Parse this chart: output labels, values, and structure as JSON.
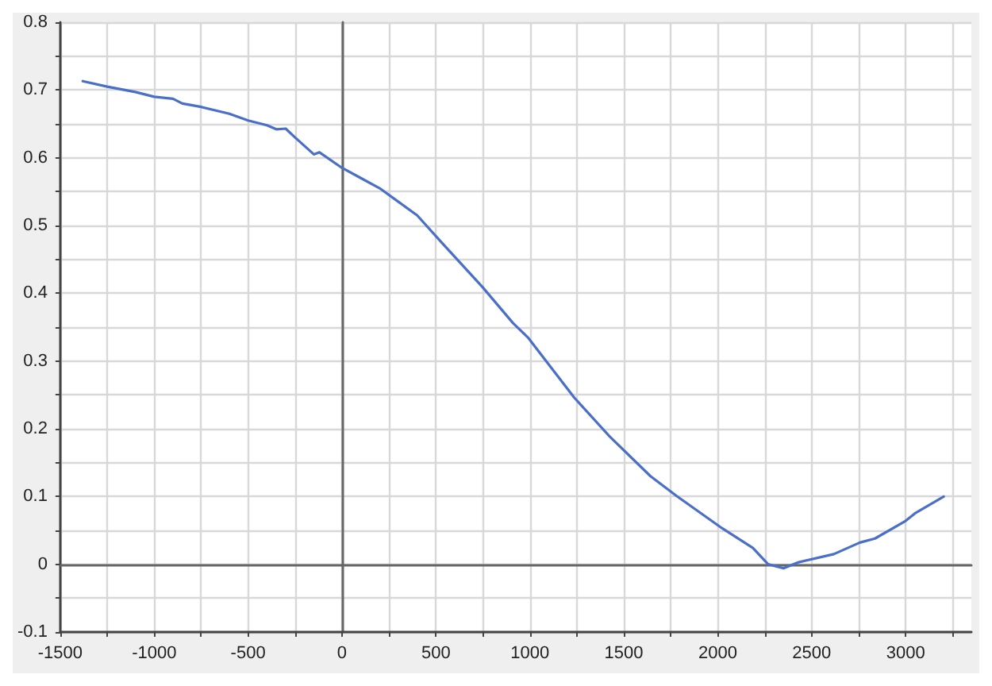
{
  "chart_data": {
    "type": "line",
    "x": [
      -1380,
      -1250,
      -1100,
      -1000,
      -900,
      -850,
      -750,
      -600,
      -500,
      -400,
      -350,
      -300,
      -250,
      -150,
      -120,
      0,
      100,
      200,
      300,
      400,
      530,
      748,
      910,
      992,
      1236,
      1423,
      1642,
      1780,
      2024,
      2187,
      2268,
      2350,
      2431,
      2618,
      2756,
      2837,
      3000,
      3049,
      3203
    ],
    "series": [
      {
        "color": "#4a6fc8",
        "values": [
          0.713,
          0.705,
          0.697,
          0.69,
          0.687,
          0.68,
          0.675,
          0.665,
          0.655,
          0.648,
          0.642,
          0.643,
          0.63,
          0.605,
          0.608,
          0.585,
          0.57,
          0.555,
          0.535,
          0.515,
          0.475,
          0.409,
          0.356,
          0.334,
          0.246,
          0.189,
          0.13,
          0.101,
          0.053,
          0.024,
          0,
          -0.006,
          0.003,
          0.015,
          0.032,
          0.038,
          0.064,
          0.075,
          0.1
        ]
      }
    ],
    "xlim": [
      -1500,
      3350
    ],
    "xticks": [
      -1500,
      {
        "value": -1250,
        "label": null
      },
      -1000,
      {
        "value": -750,
        "label": null
      },
      -500,
      {
        "value": -250,
        "label": null
      },
      0,
      {
        "value": 250,
        "label": null
      },
      500,
      {
        "value": 750,
        "label": null
      },
      1000,
      {
        "value": 1250,
        "label": null
      },
      1500,
      {
        "value": 1750,
        "label": null
      },
      2000,
      {
        "value": 2250,
        "label": null
      },
      2500,
      {
        "value": 2750,
        "label": null
      },
      3000,
      {
        "value": 3250,
        "label": null
      }
    ],
    "ylim": [
      -0.1,
      0.8
    ],
    "yticks": [
      -0.1,
      {
        "value": -0.05,
        "label": null
      },
      0,
      {
        "value": 0.05,
        "label": null
      },
      0.1,
      {
        "value": 0.15,
        "label": null
      },
      0.2,
      {
        "value": 0.25,
        "label": null
      },
      0.3,
      {
        "value": 0.35,
        "label": null
      },
      0.4,
      {
        "value": 0.45,
        "label": null
      },
      0.5,
      {
        "value": 0.55,
        "label": null
      },
      0.6,
      {
        "value": 0.65,
        "label": null
      },
      0.7,
      {
        "value": 0.75,
        "label": null
      },
      0.8
    ],
    "grid": true,
    "marker": "none",
    "line_style": "solid"
  }
}
